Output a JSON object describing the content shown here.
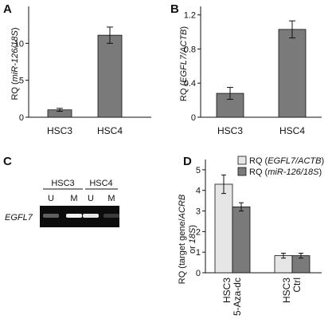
{
  "panel_letters": [
    "A",
    "B",
    "C",
    "D"
  ],
  "chart_data": [
    {
      "panel": "A",
      "type": "bar",
      "categories": [
        "HSC3",
        "HSC4"
      ],
      "values": [
        1.0,
        11.1
      ],
      "errors": [
        0.2,
        1.1
      ],
      "ylabel_prefix": "RQ (",
      "ylabel_italic": "miR-126/18S",
      "ylabel_suffix": ")",
      "ylim": [
        0,
        15
      ],
      "yticks": [
        "0",
        "5",
        "10"
      ],
      "ytick_values": [
        0,
        5,
        10
      ],
      "bar_color": "#7a7a7a"
    },
    {
      "panel": "B",
      "type": "bar",
      "categories": [
        "HSC3",
        "HSC4"
      ],
      "values": [
        0.28,
        1.03
      ],
      "errors": [
        0.07,
        0.1
      ],
      "ylabel_prefix": "RQ (",
      "ylabel_italic": "EGFL7/ACTB",
      "ylabel_suffix": ")",
      "ylim": [
        0,
        1.3
      ],
      "yticks": [
        "0",
        "0.4",
        "0.8",
        "1.2"
      ],
      "ytick_values": [
        0,
        0.4,
        0.8,
        1.2
      ],
      "bar_color": "#7a7a7a"
    },
    {
      "panel": "D",
      "type": "bar",
      "groups": [
        {
          "line1": "HSC3",
          "line2": "5-Aza-dc"
        },
        {
          "line1": "HSC3",
          "line2": "Ctrl"
        }
      ],
      "series": [
        {
          "name_prefix": "RQ (",
          "name_italic": "EGFL7/ACTB",
          "name_suffix": ")",
          "values": [
            4.3,
            0.83
          ],
          "errors": [
            0.45,
            0.12
          ],
          "color": "#e6e6e6"
        },
        {
          "name_prefix": "RQ (",
          "name_italic": "miR-126/18S",
          "name_suffix": ")",
          "values": [
            3.2,
            0.83
          ],
          "errors": [
            0.2,
            0.12
          ],
          "color": "#7a7a7a"
        }
      ],
      "ylabel_line1_prefix": "RQ (target gene/",
      "ylabel_line1_italic": "ACRB",
      "ylabel_line2_prefix": "or ",
      "ylabel_line2_italic": "18S",
      "ylabel_line2_suffix": ")",
      "ylim": [
        0,
        5.5
      ],
      "yticks": [
        "0",
        "1",
        "2",
        "3",
        "4",
        "5"
      ],
      "ytick_values": [
        0,
        1,
        2,
        3,
        4,
        5
      ],
      "legend_position": "top"
    }
  ],
  "gel": {
    "groups": [
      "HSC3",
      "HSC4"
    ],
    "lanes": [
      "U",
      "M",
      "U",
      "M"
    ],
    "row_label": "EGFL7",
    "band_intensity": [
      0.35,
      0.95,
      0.9,
      0.2
    ]
  }
}
